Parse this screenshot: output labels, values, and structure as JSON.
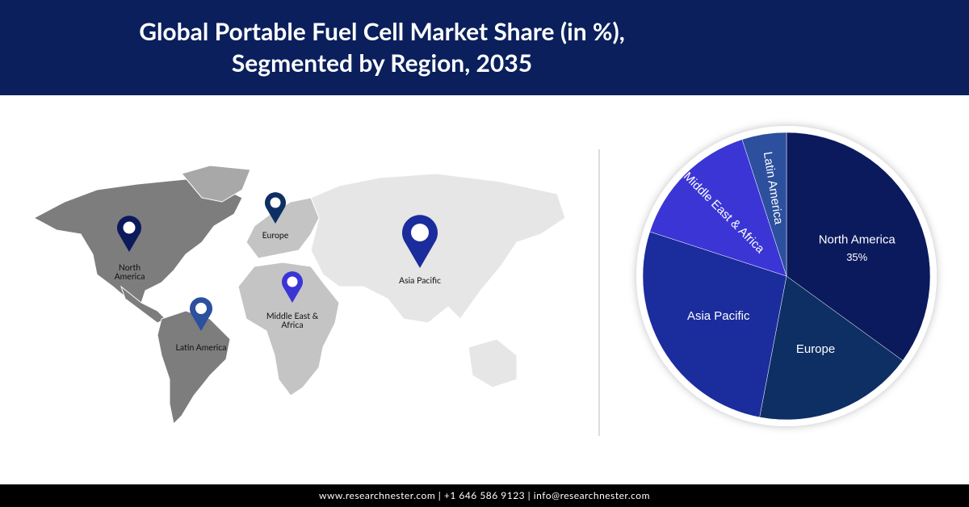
{
  "header": {
    "title": "Global Portable Fuel Cell Market Share (in %), Segmented by Region, 2035"
  },
  "chart_data": {
    "type": "pie",
    "categories": [
      "North America",
      "Europe",
      "Asia Pacific",
      "Middle East & Africa",
      "Latin America"
    ],
    "values": [
      35,
      18,
      27,
      15,
      5
    ],
    "value_labels": [
      "35%",
      null,
      null,
      null,
      null
    ],
    "colors": [
      "#0b1a5c",
      "#0e2f63",
      "#1b2c9c",
      "#3b35d6",
      "#2c4f9e"
    ]
  },
  "footer": {
    "text": "www.researchnester.com | +1 646 586 9123 | info@researchnester.com"
  }
}
